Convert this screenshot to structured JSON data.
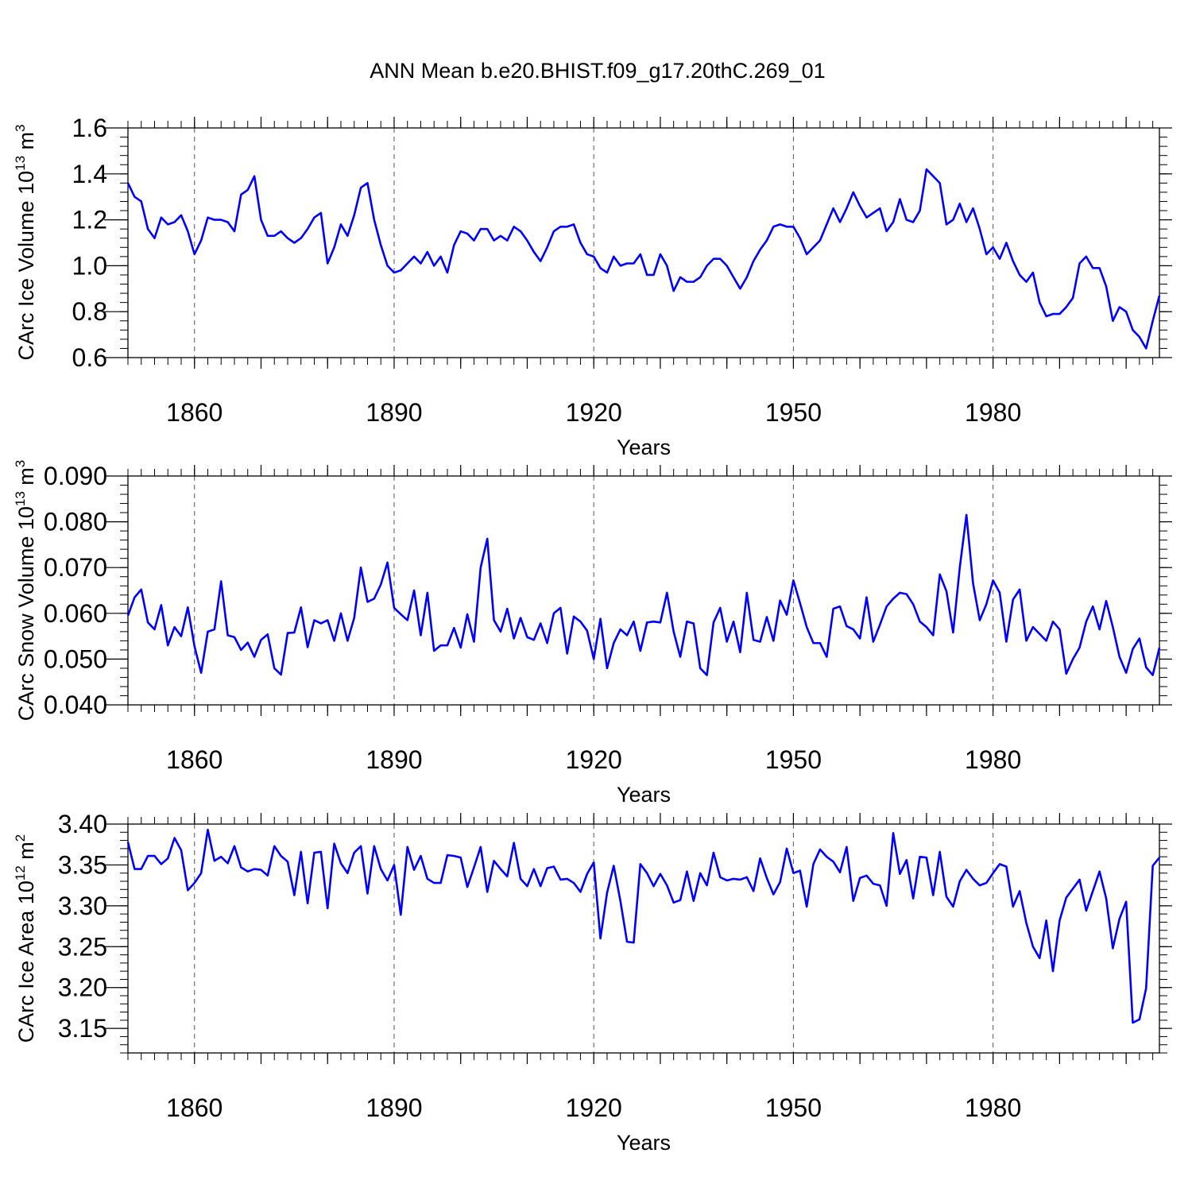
{
  "title": "ANN Mean b.e20.BHIST.f09_g17.20thC.269_01",
  "line_color": "#0000ff",
  "chart_data": [
    {
      "type": "line",
      "ylabel_text": "CArc Ice Volume 10",
      "ylabel_exp": "13",
      "ylabel_unit": " m",
      "ylabel_unit_exp": "3",
      "xlabel": "Years",
      "xlim": [
        1850,
        2005
      ],
      "ylim": [
        0.6,
        1.6
      ],
      "yticks": [
        0.6,
        0.8,
        1.0,
        1.2,
        1.4,
        1.6
      ],
      "ytick_labels": [
        "0.6",
        "0.8",
        "1.0",
        "1.2",
        "1.4",
        "1.6"
      ],
      "xticks": [
        1860,
        1890,
        1920,
        1950,
        1980
      ],
      "xtick_labels": [
        "1860",
        "1890",
        "1920",
        "1950",
        "1980"
      ],
      "x_start": 1850,
      "values": [
        1.36,
        1.3,
        1.28,
        1.16,
        1.12,
        1.21,
        1.18,
        1.19,
        1.22,
        1.15,
        1.05,
        1.11,
        1.21,
        1.2,
        1.2,
        1.19,
        1.15,
        1.31,
        1.33,
        1.39,
        1.2,
        1.13,
        1.13,
        1.15,
        1.12,
        1.1,
        1.12,
        1.16,
        1.21,
        1.23,
        1.01,
        1.08,
        1.18,
        1.13,
        1.22,
        1.34,
        1.36,
        1.2,
        1.09,
        1.0,
        0.97,
        0.98,
        1.01,
        1.04,
        1.01,
        1.06,
        1.0,
        1.04,
        0.97,
        1.09,
        1.15,
        1.14,
        1.11,
        1.16,
        1.16,
        1.11,
        1.13,
        1.11,
        1.17,
        1.15,
        1.11,
        1.06,
        1.02,
        1.08,
        1.15,
        1.17,
        1.17,
        1.18,
        1.1,
        1.05,
        1.04,
        0.99,
        0.97,
        1.04,
        1.0,
        1.01,
        1.01,
        1.05,
        0.96,
        0.96,
        1.05,
        1.0,
        0.89,
        0.95,
        0.93,
        0.93,
        0.95,
        1.0,
        1.03,
        1.03,
        1.0,
        0.95,
        0.9,
        0.95,
        1.02,
        1.07,
        1.11,
        1.17,
        1.18,
        1.17,
        1.17,
        1.12,
        1.05,
        1.08,
        1.11,
        1.18,
        1.25,
        1.19,
        1.25,
        1.32,
        1.26,
        1.21,
        1.23,
        1.25,
        1.15,
        1.19,
        1.29,
        1.2,
        1.19,
        1.24,
        1.42,
        1.39,
        1.36,
        1.18,
        1.2,
        1.27,
        1.19,
        1.25,
        1.16,
        1.05,
        1.08,
        1.03,
        1.1,
        1.02,
        0.96,
        0.93,
        0.97,
        0.84,
        0.78,
        0.79,
        0.79,
        0.82,
        0.86,
        1.01,
        1.04,
        0.99,
        0.99,
        0.91,
        0.76,
        0.82,
        0.8,
        0.72,
        0.69,
        0.64,
        0.76,
        0.87
      ]
    },
    {
      "type": "line",
      "ylabel_text": "CArc Snow Volume 10",
      "ylabel_exp": "13",
      "ylabel_unit": " m",
      "ylabel_unit_exp": "3",
      "xlabel": "Years",
      "xlim": [
        1850,
        2005
      ],
      "ylim": [
        0.04,
        0.09
      ],
      "yticks": [
        0.04,
        0.05,
        0.06,
        0.07,
        0.08,
        0.09
      ],
      "ytick_labels": [
        "0.040",
        "0.050",
        "0.060",
        "0.070",
        "0.080",
        "0.090"
      ],
      "xticks": [
        1860,
        1890,
        1920,
        1950,
        1980
      ],
      "xtick_labels": [
        "1860",
        "1890",
        "1920",
        "1950",
        "1980"
      ],
      "x_start": 1850,
      "values": [
        0.0595,
        0.0635,
        0.0652,
        0.058,
        0.0565,
        0.0618,
        0.053,
        0.057,
        0.055,
        0.0613,
        0.0528,
        0.047,
        0.056,
        0.0565,
        0.067,
        0.0552,
        0.0548,
        0.052,
        0.0536,
        0.0505,
        0.0542,
        0.0554,
        0.048,
        0.0466,
        0.0557,
        0.0558,
        0.0613,
        0.0526,
        0.0585,
        0.0578,
        0.0585,
        0.054,
        0.06,
        0.054,
        0.059,
        0.07,
        0.0625,
        0.0632,
        0.0663,
        0.0711,
        0.0612,
        0.0598,
        0.0585,
        0.065,
        0.0552,
        0.0645,
        0.0518,
        0.053,
        0.053,
        0.0568,
        0.0525,
        0.0598,
        0.0538,
        0.07,
        0.0763,
        0.0585,
        0.056,
        0.061,
        0.0545,
        0.059,
        0.0548,
        0.0542,
        0.0578,
        0.0535,
        0.06,
        0.0612,
        0.0512,
        0.0593,
        0.0582,
        0.0562,
        0.05,
        0.0588,
        0.048,
        0.0535,
        0.0565,
        0.0552,
        0.0582,
        0.0518,
        0.058,
        0.0582,
        0.058,
        0.0645,
        0.056,
        0.0505,
        0.0582,
        0.0578,
        0.048,
        0.0465,
        0.058,
        0.0612,
        0.0538,
        0.0582,
        0.0515,
        0.0645,
        0.0542,
        0.0538,
        0.0592,
        0.054,
        0.0628,
        0.0597,
        0.0672,
        0.0622,
        0.057,
        0.0535,
        0.0535,
        0.0505,
        0.061,
        0.0615,
        0.0572,
        0.0565,
        0.0545,
        0.0635,
        0.0538,
        0.0575,
        0.0615,
        0.0632,
        0.0645,
        0.0642,
        0.062,
        0.0582,
        0.057,
        0.0552,
        0.0685,
        0.0648,
        0.0558,
        0.07,
        0.0815,
        0.0665,
        0.0585,
        0.062,
        0.0672,
        0.0645,
        0.0538,
        0.063,
        0.0652,
        0.054,
        0.057,
        0.0555,
        0.054,
        0.0582,
        0.0565,
        0.0468,
        0.05,
        0.0525,
        0.0582,
        0.0615,
        0.0565,
        0.0627,
        0.057,
        0.0505,
        0.047,
        0.0522,
        0.0545,
        0.0482,
        0.0465,
        0.0525
      ]
    },
    {
      "type": "line",
      "ylabel_text": "CArc Ice Area 10",
      "ylabel_exp": "12",
      "ylabel_unit": " m",
      "ylabel_unit_exp": "2",
      "xlabel": "Years",
      "xlim": [
        1850,
        2005
      ],
      "ylim": [
        3.12,
        3.4
      ],
      "yticks": [
        3.15,
        3.2,
        3.25,
        3.3,
        3.35,
        3.4
      ],
      "ytick_labels": [
        "3.15",
        "3.20",
        "3.25",
        "3.30",
        "3.35",
        "3.40"
      ],
      "xticks": [
        1860,
        1890,
        1920,
        1950,
        1980
      ],
      "xtick_labels": [
        "1860",
        "1890",
        "1920",
        "1950",
        "1980"
      ],
      "x_start": 1850,
      "values": [
        3.378,
        3.345,
        3.345,
        3.361,
        3.361,
        3.351,
        3.358,
        3.383,
        3.368,
        3.319,
        3.328,
        3.34,
        3.393,
        3.355,
        3.36,
        3.352,
        3.373,
        3.347,
        3.342,
        3.345,
        3.344,
        3.337,
        3.373,
        3.361,
        3.354,
        3.313,
        3.366,
        3.303,
        3.365,
        3.366,
        3.297,
        3.376,
        3.352,
        3.34,
        3.365,
        3.373,
        3.315,
        3.373,
        3.345,
        3.331,
        3.35,
        3.289,
        3.372,
        3.344,
        3.361,
        3.333,
        3.328,
        3.328,
        3.362,
        3.361,
        3.359,
        3.323,
        3.347,
        3.372,
        3.317,
        3.355,
        3.345,
        3.336,
        3.377,
        3.333,
        3.324,
        3.345,
        3.324,
        3.346,
        3.348,
        3.332,
        3.333,
        3.328,
        3.317,
        3.339,
        3.353,
        3.26,
        3.316,
        3.349,
        3.306,
        3.256,
        3.255,
        3.351,
        3.34,
        3.324,
        3.339,
        3.325,
        3.304,
        3.307,
        3.342,
        3.306,
        3.34,
        3.325,
        3.365,
        3.335,
        3.331,
        3.333,
        3.332,
        3.335,
        3.318,
        3.358,
        3.334,
        3.314,
        3.329,
        3.37,
        3.34,
        3.343,
        3.299,
        3.351,
        3.369,
        3.36,
        3.354,
        3.341,
        3.372,
        3.306,
        3.334,
        3.337,
        3.327,
        3.325,
        3.3,
        3.389,
        3.339,
        3.356,
        3.309,
        3.36,
        3.359,
        3.313,
        3.366,
        3.311,
        3.299,
        3.33,
        3.344,
        3.333,
        3.325,
        3.328,
        3.34,
        3.351,
        3.348,
        3.299,
        3.318,
        3.279,
        3.25,
        3.236,
        3.282,
        3.22,
        3.282,
        3.31,
        3.321,
        3.332,
        3.294,
        3.318,
        3.342,
        3.309,
        3.248,
        3.284,
        3.305,
        3.157,
        3.161,
        3.199,
        3.349,
        3.359
      ]
    }
  ]
}
